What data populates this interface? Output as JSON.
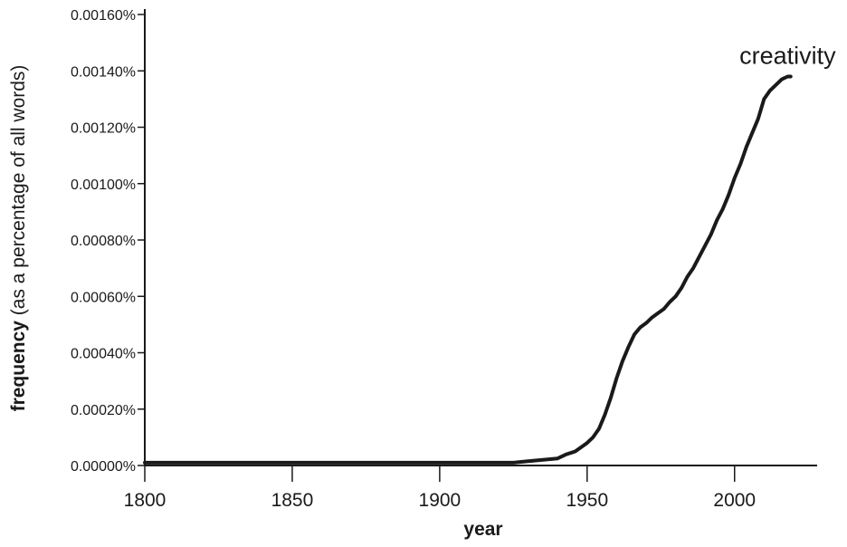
{
  "chart_data": {
    "type": "line",
    "xlabel": "year",
    "ylabel_bold": "frequency",
    "ylabel_rest": " (as a percentage of all words)",
    "xlim": [
      1800,
      2028
    ],
    "ylim": [
      0,
      0.0016
    ],
    "x_ticks": [
      1800,
      1850,
      1900,
      1950,
      2000
    ],
    "y_ticks": [
      0,
      0.0002,
      0.0004,
      0.0006,
      0.0008,
      0.001,
      0.0012,
      0.0014,
      0.0016
    ],
    "y_tick_labels": [
      "0.00000%",
      "0.00020%",
      "0.00040%",
      "0.00060%",
      "0.00080%",
      "0.00100%",
      "0.00120%",
      "0.00140%",
      "0.00160%"
    ],
    "grid": false,
    "line_color": "#1a1a1a",
    "series": [
      {
        "name": "creativity",
        "x": [
          1800,
          1850,
          1900,
          1920,
          1925,
          1930,
          1935,
          1940,
          1943,
          1946,
          1948,
          1950,
          1952,
          1954,
          1956,
          1958,
          1960,
          1962,
          1964,
          1966,
          1968,
          1970,
          1972,
          1974,
          1976,
          1978,
          1980,
          1982,
          1984,
          1986,
          1988,
          1990,
          1992,
          1994,
          1996,
          1998,
          2000,
          2002,
          2004,
          2006,
          2008,
          2010,
          2012,
          2014,
          2016,
          2018,
          2019
        ],
        "y": [
          1e-05,
          1e-05,
          1e-05,
          1e-05,
          1e-05,
          1.5e-05,
          2e-05,
          2.5e-05,
          4e-05,
          5e-05,
          6.5e-05,
          8e-05,
          0.0001,
          0.00013,
          0.00018,
          0.00024,
          0.00031,
          0.00037,
          0.00042,
          0.000465,
          0.00049,
          0.000505,
          0.000525,
          0.00054,
          0.000555,
          0.00058,
          0.0006,
          0.00063,
          0.00067,
          0.0007,
          0.00074,
          0.00078,
          0.00082,
          0.00087,
          0.00091,
          0.00096,
          0.00102,
          0.00107,
          0.00113,
          0.00118,
          0.00123,
          0.0013,
          0.00133,
          0.00135,
          0.00137,
          0.00138,
          0.00138
        ]
      }
    ]
  }
}
